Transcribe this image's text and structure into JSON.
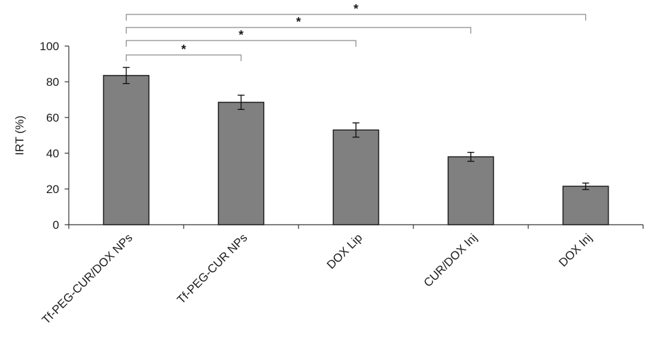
{
  "chart_data": {
    "type": "bar",
    "categories": [
      "Tf-PEG-CUR/DOX NPs",
      "Tf-PEG-CUR NPs",
      "DOX Lip",
      "CUR/DOX Inj",
      "DOX Inj"
    ],
    "values": [
      83.5,
      68.5,
      53,
      38,
      21.5
    ],
    "errors": [
      4.5,
      4,
      4,
      2.5,
      1.8
    ],
    "ylabel": "IRT (%)",
    "xlabel": "",
    "ylim": [
      0,
      100
    ],
    "yticks": [
      0,
      20,
      40,
      60,
      80,
      100
    ],
    "bar_color": "#808080",
    "grid": false,
    "significance": [
      {
        "from": "Tf-PEG-CUR/DOX NPs",
        "to": "Tf-PEG-CUR NPs",
        "label": "*"
      },
      {
        "from": "Tf-PEG-CUR/DOX NPs",
        "to": "DOX Lip",
        "label": "*"
      },
      {
        "from": "Tf-PEG-CUR/DOX NPs",
        "to": "CUR/DOX Inj",
        "label": "*"
      },
      {
        "from": "Tf-PEG-CUR/DOX NPs",
        "to": "DOX Inj",
        "label": "*"
      }
    ]
  }
}
